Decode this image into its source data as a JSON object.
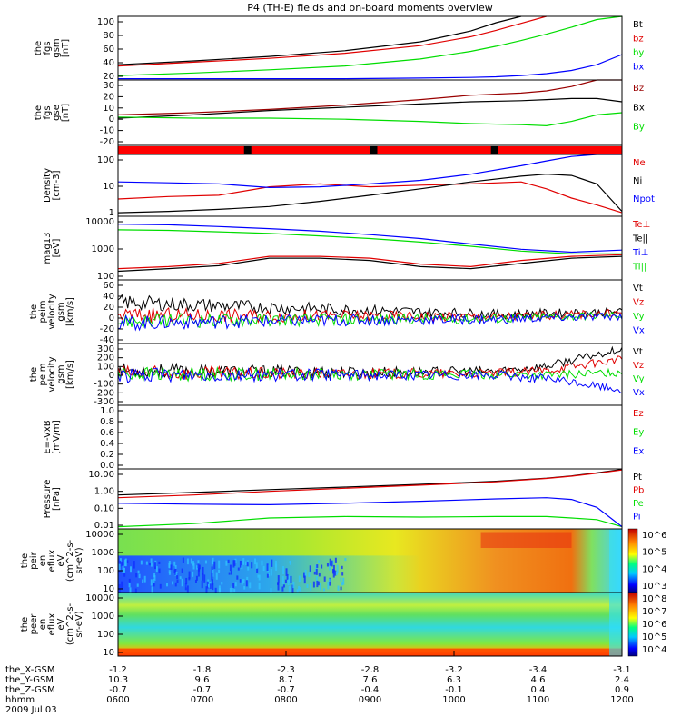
{
  "title": "P4 (TH-E) fields and on-board moments overview",
  "colors": {
    "black": "#000000",
    "red": "#e00000",
    "green": "#00dd00",
    "blue": "#0000ff",
    "darkred": "#990000"
  },
  "chart_data": [
    {
      "id": "fgs_mag",
      "type": "line",
      "ylabel_lines": [
        "the",
        "fgs",
        "gsm",
        "[nT]"
      ],
      "ylim": [
        0,
        100
      ],
      "yticks": [
        "100",
        "80",
        "60",
        "40",
        "20"
      ],
      "legend": [
        {
          "label": "Bt",
          "color": "#000000"
        },
        {
          "label": "bz",
          "color": "#e00000"
        },
        {
          "label": "by",
          "color": "#00dd00"
        },
        {
          "label": "bx",
          "color": "#0000ff"
        }
      ],
      "x": [
        0,
        0.15,
        0.3,
        0.45,
        0.6,
        0.7,
        0.75,
        0.8,
        0.85,
        0.9,
        0.95,
        1.0
      ],
      "series": [
        {
          "name": "Bt",
          "color": "#000000",
          "values": [
            24,
            30,
            37,
            46,
            60,
            77,
            90,
            100,
            null,
            null,
            null,
            null
          ]
        },
        {
          "name": "bz",
          "color": "#e00000",
          "values": [
            22,
            28,
            34,
            42,
            54,
            68,
            78,
            89,
            100,
            null,
            null,
            null
          ]
        },
        {
          "name": "by",
          "color": "#00dd00",
          "values": [
            7,
            11,
            16,
            22,
            33,
            45,
            53,
            62,
            72,
            83,
            95,
            100
          ]
        },
        {
          "name": "bx",
          "color": "#0000ff",
          "values": [
            2,
            2,
            2,
            2,
            3,
            4,
            5,
            7,
            10,
            15,
            24,
            40
          ]
        }
      ]
    },
    {
      "id": "fgs_gse",
      "type": "line",
      "ylabel_lines": [
        "the",
        "fgs",
        "gse",
        "[nT]"
      ],
      "ylim": [
        -28,
        32
      ],
      "yticks": [
        "30",
        "20",
        "10",
        "0",
        "-10",
        "-20"
      ],
      "legend": [
        {
          "label": "Bz",
          "color": "#990000"
        },
        {
          "label": "Bx",
          "color": "#000000"
        },
        {
          "label": "By",
          "color": "#00dd00"
        }
      ],
      "x": [
        0,
        0.15,
        0.3,
        0.45,
        0.6,
        0.7,
        0.8,
        0.85,
        0.9,
        0.95,
        1.0
      ],
      "series": [
        {
          "name": "Bz",
          "color": "#990000",
          "values": [
            0,
            2,
            5,
            9,
            14,
            18,
            20,
            22,
            26,
            32,
            32
          ]
        },
        {
          "name": "Bx",
          "color": "#000000",
          "values": [
            -3,
            0,
            4,
            7,
            10,
            12,
            13,
            14,
            15,
            15,
            12
          ]
        },
        {
          "name": "By",
          "color": "#00dd00",
          "values": [
            -2,
            -3,
            -3,
            -4,
            -6,
            -8,
            -9,
            -10,
            -6,
            0,
            2
          ]
        }
      ]
    },
    {
      "id": "density",
      "type": "line",
      "log": true,
      "ylabel_lines": [
        "Density",
        "[cm-3]"
      ],
      "ylim": [
        0.03,
        200
      ],
      "yticks": [
        "100",
        "10",
        "1"
      ],
      "legend": [
        {
          "label": "Ne",
          "color": "#e00000"
        },
        {
          "label": "Ni",
          "color": "#000000"
        },
        {
          "label": "Npot",
          "color": "#0000ff"
        }
      ],
      "x": [
        0,
        0.1,
        0.2,
        0.3,
        0.4,
        0.5,
        0.6,
        0.7,
        0.8,
        0.85,
        0.9,
        0.95,
        1.0
      ],
      "series": [
        {
          "name": "Ne",
          "color": "#e00000",
          "values": [
            0.35,
            0.5,
            0.6,
            2,
            3,
            2,
            2.5,
            3,
            4,
            1.5,
            0.4,
            0.15,
            0.05
          ]
        },
        {
          "name": "Ni",
          "color": "#000000",
          "values": [
            0.05,
            0.06,
            0.08,
            0.12,
            0.25,
            0.6,
            1.5,
            4,
            9,
            12,
            10,
            3,
            0.06
          ]
        },
        {
          "name": "Npot",
          "color": "#0000ff",
          "values": [
            4,
            3.5,
            3,
            1.8,
            2,
            3,
            5,
            12,
            40,
            80,
            150,
            200,
            200
          ]
        }
      ]
    },
    {
      "id": "temperature",
      "type": "line",
      "log": true,
      "ylabel_lines": [
        "mag13",
        "[eV]"
      ],
      "ylim": [
        30,
        15000
      ],
      "yticks": [
        "10000",
        "1000",
        "100"
      ],
      "legend": [
        {
          "label": "Te⊥",
          "color": "#e00000"
        },
        {
          "label": "Te||",
          "color": "#000000"
        },
        {
          "label": "Ti⊥",
          "color": "#0000ff"
        },
        {
          "label": "Ti||",
          "color": "#00dd00"
        }
      ],
      "x": [
        0,
        0.1,
        0.2,
        0.3,
        0.4,
        0.5,
        0.6,
        0.7,
        0.8,
        0.9,
        1.0
      ],
      "series": [
        {
          "name": "Ti⊥",
          "color": "#0000ff",
          "values": [
            7000,
            6500,
            5500,
            4500,
            3500,
            2500,
            1700,
            1000,
            600,
            450,
            550
          ]
        },
        {
          "name": "Ti||",
          "color": "#00dd00",
          "values": [
            4000,
            3800,
            3300,
            2800,
            2200,
            1700,
            1200,
            800,
            500,
            380,
            380
          ]
        },
        {
          "name": "Te||",
          "color": "#000000",
          "values": [
            70,
            90,
            120,
            250,
            250,
            200,
            110,
            90,
            150,
            250,
            300
          ]
        },
        {
          "name": "Te⊥",
          "color": "#e00000",
          "values": [
            90,
            110,
            150,
            300,
            300,
            250,
            140,
            110,
            200,
            300,
            350
          ]
        }
      ]
    },
    {
      "id": "peim_velocity_low",
      "type": "line",
      "noisy": true,
      "ylabel_lines": [
        "the",
        "peim",
        "velocity",
        "gsm",
        "[km/s]"
      ],
      "ylim": [
        -40,
        60
      ],
      "yticks": [
        "60",
        "40",
        "20",
        "0",
        "-20",
        "-40"
      ],
      "legend": [
        {
          "label": "Vt",
          "color": "#000000"
        },
        {
          "label": "Vz",
          "color": "#e00000"
        },
        {
          "label": "Vy",
          "color": "#00dd00"
        },
        {
          "label": "Vx",
          "color": "#0000ff"
        }
      ],
      "x": [
        0,
        0.25,
        0.5,
        0.75,
        1.0
      ],
      "series": [
        {
          "name": "Vt",
          "color": "#000000",
          "values": [
            25,
            18,
            12,
            6,
            10
          ]
        },
        {
          "name": "Vz",
          "color": "#e00000",
          "values": [
            5,
            4,
            3,
            2,
            8
          ]
        },
        {
          "name": "Vy",
          "color": "#00dd00",
          "values": [
            -5,
            -3,
            -2,
            -1,
            5
          ]
        },
        {
          "name": "Vx",
          "color": "#0000ff",
          "values": [
            -8,
            -5,
            -3,
            -2,
            3
          ]
        }
      ]
    },
    {
      "id": "peim_velocity_high",
      "type": "line",
      "noisy": true,
      "ylabel_lines": [
        "the",
        "peim",
        "velocity",
        "gsm",
        "[km/s]"
      ],
      "ylim": [
        -300,
        300
      ],
      "yticks": [
        "300",
        "200",
        "100",
        "0",
        "-100",
        "-200",
        "-300"
      ],
      "legend": [
        {
          "label": "Vt",
          "color": "#000000"
        },
        {
          "label": "Vz",
          "color": "#e00000"
        },
        {
          "label": "Vy",
          "color": "#00dd00"
        },
        {
          "label": "Vx",
          "color": "#0000ff"
        }
      ],
      "x": [
        0,
        0.25,
        0.5,
        0.75,
        0.85,
        1.0
      ],
      "series": [
        {
          "name": "Vt",
          "color": "#000000",
          "values": [
            40,
            30,
            20,
            30,
            80,
            250
          ]
        },
        {
          "name": "Vz",
          "color": "#e00000",
          "values": [
            15,
            10,
            5,
            10,
            40,
            150
          ]
        },
        {
          "name": "Vy",
          "color": "#00dd00",
          "values": [
            5,
            2,
            0,
            0,
            -10,
            20
          ]
        },
        {
          "name": "Vx",
          "color": "#0000ff",
          "values": [
            -10,
            -5,
            -5,
            -10,
            -40,
            -150
          ]
        }
      ]
    },
    {
      "id": "e_field",
      "type": "line",
      "ylabel_lines": [
        "E=-VxB",
        "[mV/m]"
      ],
      "ylim": [
        0,
        1
      ],
      "yticks": [
        "1.0",
        "0.8",
        "0.6",
        "0.4",
        "0.2",
        "0.0"
      ],
      "legend": [
        {
          "label": "Ez",
          "color": "#e00000"
        },
        {
          "label": "Ey",
          "color": "#00dd00"
        },
        {
          "label": "Ex",
          "color": "#0000ff"
        }
      ],
      "x": [],
      "series": []
    },
    {
      "id": "pressure",
      "type": "line",
      "log": true,
      "ylabel_lines": [
        "Pressure",
        "[nPa]"
      ],
      "ylim": [
        0.006,
        15
      ],
      "yticks": [
        "10.00",
        "1.00",
        "0.10",
        "0.01"
      ],
      "legend": [
        {
          "label": "Pt",
          "color": "#000000"
        },
        {
          "label": "Pb",
          "color": "#e00000"
        },
        {
          "label": "Pe",
          "color": "#00dd00"
        },
        {
          "label": "Pi",
          "color": "#0000ff"
        }
      ],
      "x": [
        0,
        0.15,
        0.3,
        0.45,
        0.6,
        0.75,
        0.85,
        0.9,
        0.95,
        1.0
      ],
      "series": [
        {
          "name": "Pt",
          "color": "#000000",
          "values": [
            0.5,
            0.7,
            1.0,
            1.4,
            2.0,
            3.0,
            4.5,
            6,
            9,
            14
          ]
        },
        {
          "name": "Pb",
          "color": "#e00000",
          "values": [
            0.35,
            0.5,
            0.8,
            1.2,
            1.8,
            2.8,
            4.3,
            5.8,
            8.5,
            13
          ]
        },
        {
          "name": "Pe",
          "color": "#00dd00",
          "values": [
            0.008,
            0.012,
            0.025,
            0.03,
            0.028,
            0.03,
            0.03,
            0.025,
            0.02,
            0.008
          ]
        },
        {
          "name": "Pi",
          "color": "#0000ff",
          "values": [
            0.17,
            0.15,
            0.14,
            0.17,
            0.22,
            0.3,
            0.35,
            0.28,
            0.1,
            0.008
          ]
        }
      ]
    },
    {
      "id": "peir_spectrogram",
      "type": "heatmap",
      "ylabel_lines": [
        "the",
        "peir",
        "en",
        "eflux",
        "eV",
        "(cm^2-s-",
        "sr-eV)"
      ],
      "yticks": [
        "10000",
        "1000",
        "100",
        "10"
      ],
      "colorbar_ticks": [
        "10^6",
        "10^5",
        "10^4",
        "10^3"
      ]
    },
    {
      "id": "peer_spectrogram",
      "type": "heatmap",
      "ylabel_lines": [
        "the",
        "peer",
        "en",
        "eflux",
        "eV",
        "(cm^2-s-",
        "sr-eV)"
      ],
      "yticks": [
        "10000",
        "1000",
        "100",
        "10"
      ],
      "colorbar_ticks": [
        "10^8",
        "10^7",
        "10^6",
        "10^5",
        "10^4"
      ]
    }
  ],
  "x_axis": {
    "rows": [
      {
        "label": "the_X-GSM",
        "values": [
          "-1.2",
          "-1.8",
          "-2.3",
          "-2.8",
          "-3.2",
          "-3.4",
          "-3.1"
        ]
      },
      {
        "label": "the_Y-GSM",
        "values": [
          "10.3",
          "9.6",
          "8.7",
          "7.6",
          "6.3",
          "4.6",
          "2.4"
        ]
      },
      {
        "label": "the_Z-GSM",
        "values": [
          "-0.7",
          "-0.7",
          "-0.7",
          "-0.4",
          "-0.1",
          "0.4",
          "0.9"
        ]
      },
      {
        "label": "hhmm",
        "values": [
          "0600",
          "0700",
          "0800",
          "0900",
          "1000",
          "1100",
          "1200"
        ]
      }
    ],
    "date": "2009 Jul 03"
  }
}
